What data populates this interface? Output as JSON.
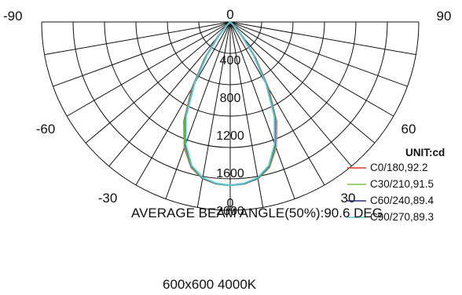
{
  "chart_data": {
    "type": "polar",
    "unit_label": "UNIT:cd",
    "angle_labels": [
      "-90",
      "-60",
      "-30",
      "0",
      "30",
      "60",
      "90"
    ],
    "radial_ticks": [
      0,
      400,
      800,
      1200,
      1600,
      2000
    ],
    "radial_tick_labels": [
      "0",
      "400",
      "800",
      "1200",
      "1600",
      "2000"
    ],
    "rmax": 2000,
    "angular_range": [
      -90,
      90
    ],
    "grid": true,
    "legend_position": "right",
    "series": [
      {
        "name": "C0/180,92.2",
        "color": "#d83a2e",
        "angles": [
          -90,
          -75,
          -60,
          -50,
          -45,
          -40,
          -35,
          -30,
          -25,
          -20,
          -15,
          -10,
          -5,
          0,
          5,
          10,
          15,
          20,
          25,
          30,
          35,
          40,
          45,
          50,
          60,
          75,
          90
        ],
        "values": [
          0,
          0,
          0,
          0,
          60,
          210,
          470,
          810,
          1160,
          1420,
          1600,
          1690,
          1725,
          1735,
          1725,
          1690,
          1600,
          1420,
          1160,
          810,
          470,
          210,
          60,
          0,
          0,
          0,
          0
        ]
      },
      {
        "name": "C30/210,91.5",
        "color": "#7cc24a",
        "angles": [
          -90,
          -75,
          -60,
          -50,
          -45,
          -40,
          -35,
          -30,
          -25,
          -20,
          -15,
          -10,
          -5,
          0,
          5,
          10,
          15,
          20,
          25,
          30,
          35,
          40,
          45,
          50,
          60,
          75,
          90
        ],
        "values": [
          0,
          0,
          0,
          0,
          55,
          200,
          455,
          790,
          1145,
          1410,
          1595,
          1688,
          1724,
          1735,
          1724,
          1688,
          1595,
          1410,
          1145,
          790,
          455,
          200,
          55,
          0,
          0,
          0,
          0
        ]
      },
      {
        "name": "C60/240,89.4",
        "color": "#1b2f7a",
        "angles": [
          -90,
          -75,
          -60,
          -50,
          -45,
          -40,
          -35,
          -30,
          -25,
          -20,
          -15,
          -10,
          -5,
          0,
          5,
          10,
          15,
          20,
          25,
          30,
          35,
          40,
          45,
          50,
          60,
          75,
          90
        ],
        "values": [
          0,
          0,
          0,
          0,
          50,
          190,
          440,
          770,
          1120,
          1390,
          1585,
          1683,
          1722,
          1735,
          1722,
          1683,
          1585,
          1390,
          1120,
          770,
          440,
          190,
          50,
          0,
          0,
          0,
          0
        ]
      },
      {
        "name": "C90/270,89.3",
        "color": "#5bc8d6",
        "angles": [
          -90,
          -75,
          -60,
          -50,
          -45,
          -40,
          -35,
          -30,
          -25,
          -20,
          -15,
          -10,
          -5,
          0,
          5,
          10,
          15,
          20,
          25,
          30,
          35,
          40,
          45,
          50,
          60,
          75,
          90
        ],
        "values": [
          0,
          0,
          0,
          0,
          50,
          185,
          430,
          760,
          1110,
          1380,
          1580,
          1680,
          1720,
          1735,
          1720,
          1680,
          1580,
          1380,
          1110,
          760,
          430,
          185,
          50,
          0,
          0,
          0,
          0
        ]
      }
    ]
  },
  "beam_angle_text": "AVERAGE BEAM ANGLE(50%):90.6 DEG",
  "footer_text": "600x600 4000K"
}
